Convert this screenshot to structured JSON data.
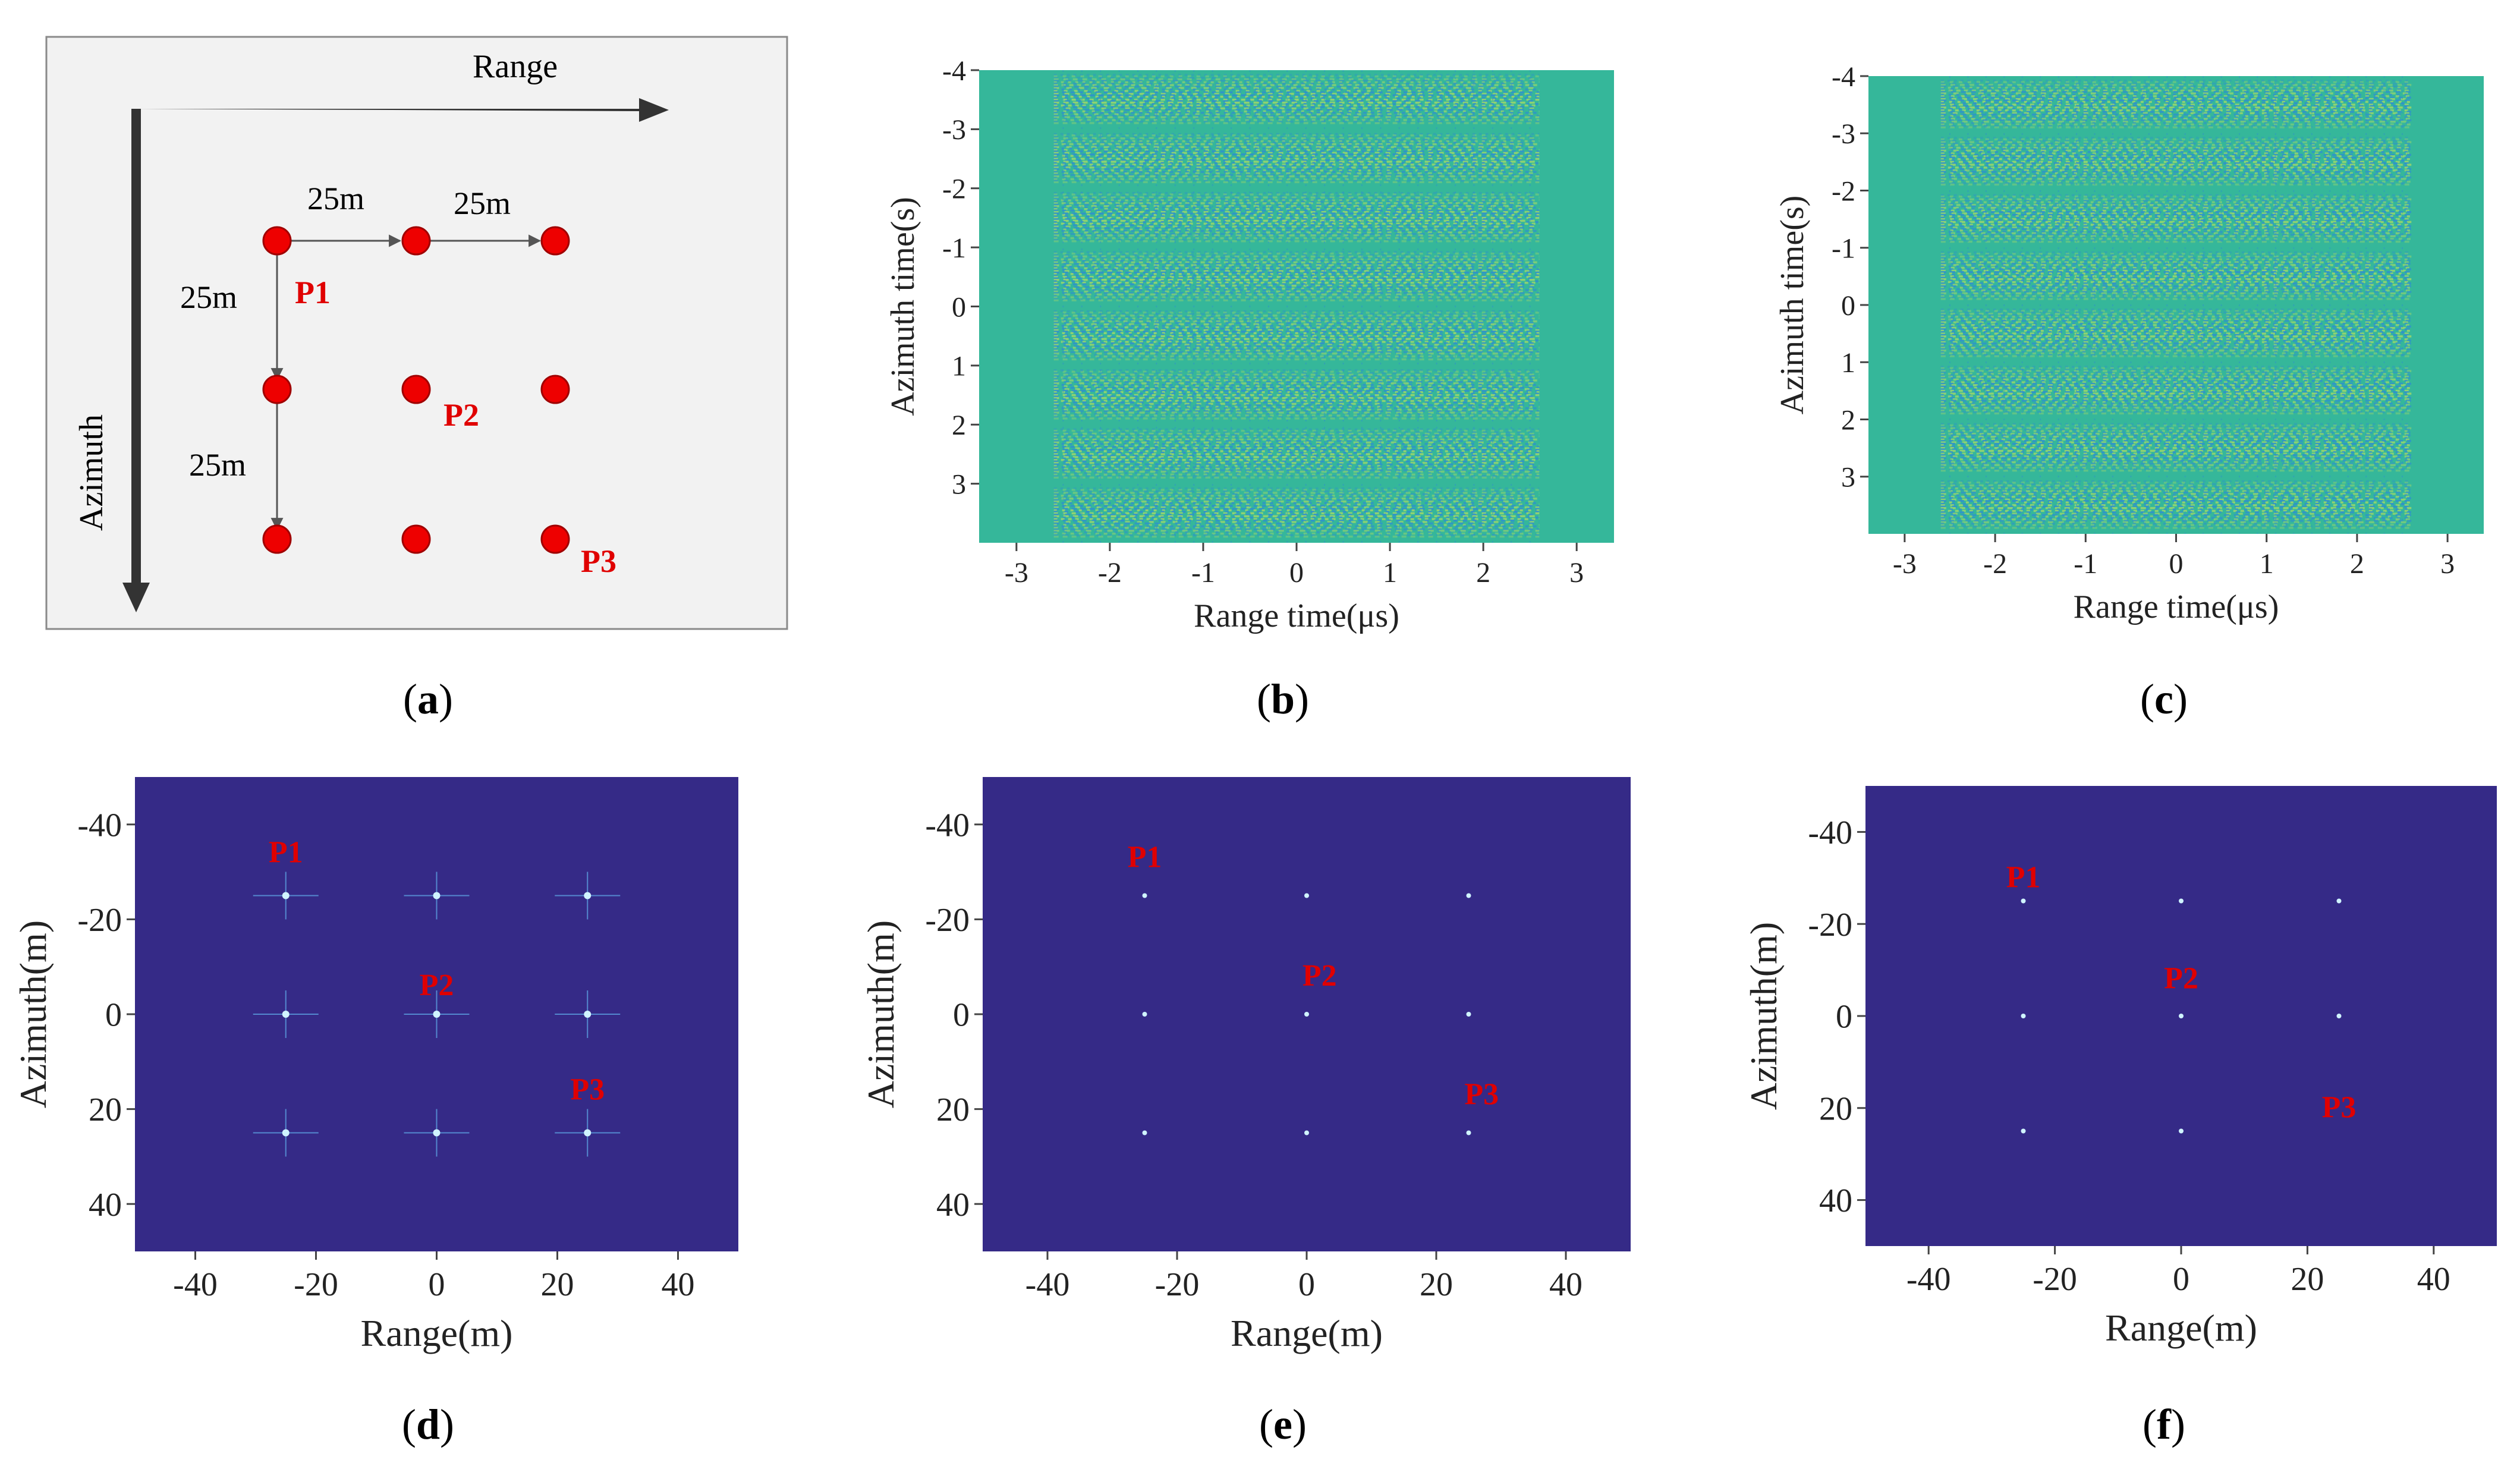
{
  "figure": {
    "diagram": {
      "range_label": "Range",
      "azimuth_label": "Azimuth",
      "spacing_labels": [
        "25m",
        "25m",
        "25m",
        "25m"
      ],
      "point_labels": [
        "P1",
        "P2",
        "P3"
      ],
      "grid_rows": 3,
      "grid_cols": 3,
      "colors": {
        "point": "#ee0000",
        "label": "#e00000",
        "axis": "#333333",
        "panel_bg": "#f2f2f2"
      }
    },
    "captions": {
      "a": "a",
      "b": "b",
      "c": "c",
      "d": "d",
      "e": "e",
      "f": "f"
    }
  },
  "chart_data": [
    {
      "id": "b",
      "type": "heatmap",
      "title": "",
      "xlabel": "Range time(μs)",
      "ylabel": "Azimuth time(s)",
      "xlim": [
        -3.4,
        3.4
      ],
      "ylim": [
        -4,
        4
      ],
      "xticks": [
        -3,
        -2,
        -1,
        0,
        1,
        2,
        3
      ],
      "yticks": [
        -4,
        -3,
        -2,
        -1,
        0,
        1,
        2,
        3
      ],
      "signal_range_extent": [
        -2.6,
        2.6
      ],
      "echo_rows_azimuth": [
        -3.5,
        -2.5,
        -1.5,
        -0.5,
        0.5,
        1.5,
        2.5,
        3.5
      ],
      "colors": {
        "background": "#35b79a",
        "stripe_light": "#9fd86a",
        "stripe_dark": "#2e8fd1"
      }
    },
    {
      "id": "c",
      "type": "heatmap",
      "title": "",
      "xlabel": "Range time(μs)",
      "ylabel": "Azimuth time(s)",
      "xlim": [
        -3.4,
        3.4
      ],
      "ylim": [
        -4,
        4
      ],
      "xticks": [
        -3,
        -2,
        -1,
        0,
        1,
        2,
        3
      ],
      "yticks": [
        -4,
        -3,
        -2,
        -1,
        0,
        1,
        2,
        3
      ],
      "signal_range_extent": [
        -2.6,
        2.6
      ],
      "echo_rows_azimuth": [
        -3.5,
        -2.5,
        -1.5,
        -0.5,
        0.5,
        1.5,
        2.5,
        3.5
      ],
      "colors": {
        "background": "#35b79a",
        "stripe_light": "#9fd86a",
        "stripe_dark": "#2e8fd1"
      }
    },
    {
      "id": "d",
      "type": "scatter",
      "title": "",
      "xlabel": "Range(m)",
      "ylabel": "Azimuth(m)",
      "xlim": [
        -50,
        50
      ],
      "ylim": [
        -50,
        50
      ],
      "xticks": [
        -40,
        -20,
        0,
        20,
        40
      ],
      "yticks": [
        -40,
        -20,
        0,
        20,
        40
      ],
      "points": [
        {
          "x": -25,
          "y": -25
        },
        {
          "x": 0,
          "y": -25
        },
        {
          "x": 25,
          "y": -25
        },
        {
          "x": -25,
          "y": 0
        },
        {
          "x": 0,
          "y": 0
        },
        {
          "x": 25,
          "y": 0
        },
        {
          "x": -25,
          "y": 25
        },
        {
          "x": 0,
          "y": 25
        },
        {
          "x": 25,
          "y": 25
        }
      ],
      "sidelobes": true,
      "annotations": [
        {
          "text": "P1",
          "x": -25,
          "y": -32
        },
        {
          "text": "P2",
          "x": 0,
          "y": -4
        },
        {
          "text": "P3",
          "x": 25,
          "y": 18
        }
      ],
      "colors": {
        "background": "#352a87",
        "point": "#d0f4ff",
        "annotation": "#e00000"
      }
    },
    {
      "id": "e",
      "type": "scatter",
      "title": "",
      "xlabel": "Range(m)",
      "ylabel": "Azimuth(m)",
      "xlim": [
        -50,
        50
      ],
      "ylim": [
        -50,
        50
      ],
      "xticks": [
        -40,
        -20,
        0,
        20,
        40
      ],
      "yticks": [
        -40,
        -20,
        0,
        20,
        40
      ],
      "points": [
        {
          "x": -25,
          "y": -25
        },
        {
          "x": 0,
          "y": -25
        },
        {
          "x": 25,
          "y": -25
        },
        {
          "x": -25,
          "y": 0
        },
        {
          "x": 0,
          "y": 0
        },
        {
          "x": 25,
          "y": 0
        },
        {
          "x": -25,
          "y": 25
        },
        {
          "x": 0,
          "y": 25
        },
        {
          "x": 25,
          "y": 25
        }
      ],
      "sidelobes": false,
      "annotations": [
        {
          "text": "P1",
          "x": -25,
          "y": -31
        },
        {
          "text": "P2",
          "x": 2,
          "y": -6
        },
        {
          "text": "P3",
          "x": 27,
          "y": 19
        }
      ],
      "colors": {
        "background": "#352a87",
        "point": "#d0f4ff",
        "annotation": "#e00000"
      }
    },
    {
      "id": "f",
      "type": "scatter",
      "title": "",
      "xlabel": "Range(m)",
      "ylabel": "Azimuth(m)",
      "xlim": [
        -50,
        50
      ],
      "ylim": [
        -50,
        50
      ],
      "xticks": [
        -40,
        -20,
        0,
        20,
        40
      ],
      "yticks": [
        -40,
        -20,
        0,
        20,
        40
      ],
      "points": [
        {
          "x": -25,
          "y": -25
        },
        {
          "x": 0,
          "y": -25
        },
        {
          "x": 25,
          "y": -25
        },
        {
          "x": -25,
          "y": 0
        },
        {
          "x": 0,
          "y": 0
        },
        {
          "x": 25,
          "y": 0
        },
        {
          "x": -25,
          "y": 25
        },
        {
          "x": 0,
          "y": 25
        }
      ],
      "sidelobes": false,
      "annotations": [
        {
          "text": "P1",
          "x": -25,
          "y": -28
        },
        {
          "text": "P2",
          "x": 0,
          "y": -6
        },
        {
          "text": "P3",
          "x": 25,
          "y": 22
        }
      ],
      "colors": {
        "background": "#352a87",
        "point": "#d0f4ff",
        "annotation": "#e00000"
      }
    }
  ]
}
